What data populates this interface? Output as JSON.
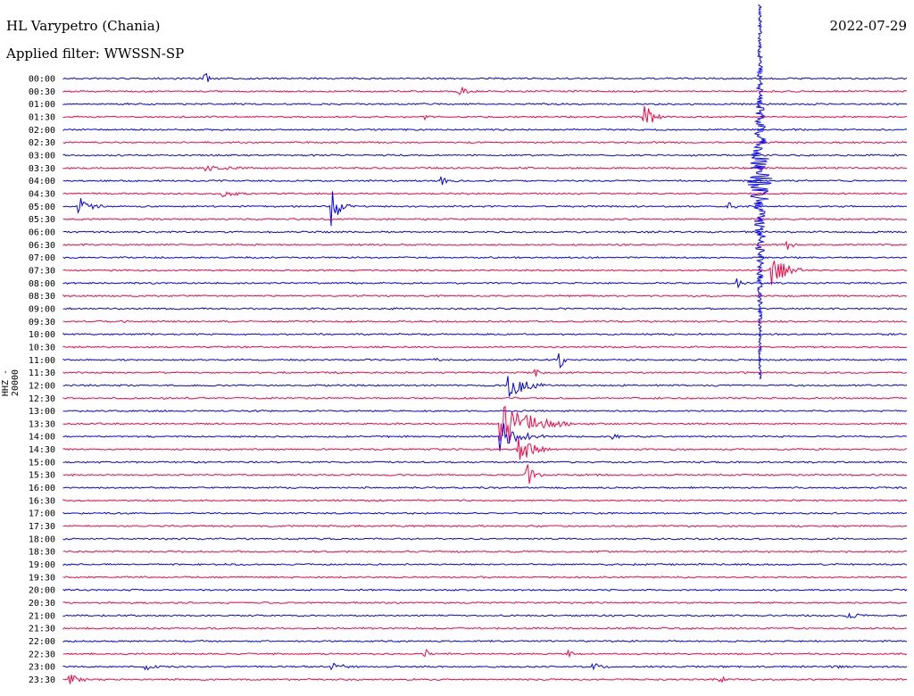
{
  "header": {
    "station": "HL Varypetro (Chania)",
    "filter": "Applied filter: WWSSN-SP",
    "date": "2022-07-29"
  },
  "chart_data": {
    "type": "line",
    "ylabel": "HHZ - 20000",
    "row_times": [
      "00:00",
      "00:30",
      "01:00",
      "01:30",
      "02:00",
      "02:30",
      "03:00",
      "03:30",
      "04:00",
      "04:30",
      "05:00",
      "05:30",
      "06:00",
      "06:30",
      "07:00",
      "07:30",
      "08:00",
      "08:30",
      "09:00",
      "09:30",
      "10:00",
      "10:30",
      "11:00",
      "11:30",
      "12:00",
      "12:30",
      "13:00",
      "13:30",
      "14:00",
      "14:30",
      "15:00",
      "15:30",
      "16:00",
      "16:30",
      "17:00",
      "17:30",
      "18:00",
      "18:30",
      "19:00",
      "19:30",
      "20:00",
      "20:30",
      "21:00",
      "21:30",
      "22:00",
      "22:30",
      "23:00",
      "23:30"
    ],
    "series_colors": [
      "#0000ff",
      "#ff0040"
    ],
    "events": [
      {
        "row": 0,
        "pos": 0.17,
        "amp": 5,
        "dur": 0.01
      },
      {
        "row": 1,
        "pos": 0.47,
        "amp": 5,
        "dur": 0.02
      },
      {
        "row": 3,
        "pos": 0.69,
        "amp": 12,
        "dur": 0.03
      },
      {
        "row": 3,
        "pos": 0.43,
        "amp": 2,
        "dur": 0.01
      },
      {
        "row": 7,
        "pos": 0.17,
        "amp": 3,
        "dur": 0.05
      },
      {
        "row": 8,
        "pos": 0.45,
        "amp": 4,
        "dur": 0.02
      },
      {
        "row": 10,
        "pos": 0.02,
        "amp": 10,
        "dur": 0.03
      },
      {
        "row": 10,
        "pos": 0.32,
        "amp": 22,
        "dur": 0.02
      },
      {
        "row": 10,
        "pos": 0.79,
        "amp": 5,
        "dur": 0.01
      },
      {
        "row": 9,
        "pos": 0.19,
        "amp": 3,
        "dur": 0.04
      },
      {
        "row": 13,
        "pos": 0.86,
        "amp": 5,
        "dur": 0.01
      },
      {
        "row": 15,
        "pos": 0.84,
        "amp": 18,
        "dur": 0.04
      },
      {
        "row": 16,
        "pos": 0.8,
        "amp": 4,
        "dur": 0.01
      },
      {
        "row": 22,
        "pos": 0.59,
        "amp": 8,
        "dur": 0.01
      },
      {
        "row": 22,
        "pos": 0.44,
        "amp": 3,
        "dur": 0.01
      },
      {
        "row": 23,
        "pos": 0.56,
        "amp": 4,
        "dur": 0.01
      },
      {
        "row": 24,
        "pos": 0.53,
        "amp": 18,
        "dur": 0.04
      },
      {
        "row": 27,
        "pos": 0.52,
        "amp": 30,
        "dur": 0.08
      },
      {
        "row": 28,
        "pos": 0.65,
        "amp": 8,
        "dur": 0.01
      },
      {
        "row": 28,
        "pos": 0.52,
        "amp": 18,
        "dur": 0.05
      },
      {
        "row": 29,
        "pos": 0.54,
        "amp": 18,
        "dur": 0.04
      },
      {
        "row": 31,
        "pos": 0.55,
        "amp": 12,
        "dur": 0.02
      },
      {
        "row": 42,
        "pos": 0.93,
        "amp": 4,
        "dur": 0.02
      },
      {
        "row": 45,
        "pos": 0.43,
        "amp": 5,
        "dur": 0.01
      },
      {
        "row": 45,
        "pos": 0.6,
        "amp": 3,
        "dur": 0.01
      },
      {
        "row": 46,
        "pos": 0.1,
        "amp": 4,
        "dur": 0.02
      },
      {
        "row": 46,
        "pos": 0.32,
        "amp": 4,
        "dur": 0.03
      },
      {
        "row": 46,
        "pos": 0.63,
        "amp": 3,
        "dur": 0.02
      },
      {
        "row": 46,
        "pos": 0.91,
        "amp": 3,
        "dur": 0.02
      },
      {
        "row": 47,
        "pos": 0.01,
        "amp": 5,
        "dur": 0.03
      },
      {
        "row": 47,
        "pos": 0.78,
        "amp": 3,
        "dur": 0.01
      }
    ],
    "big_event": {
      "from_row": 0,
      "to_row": 23,
      "pos": 0.825,
      "peak_row": 8,
      "amp": 14
    }
  }
}
